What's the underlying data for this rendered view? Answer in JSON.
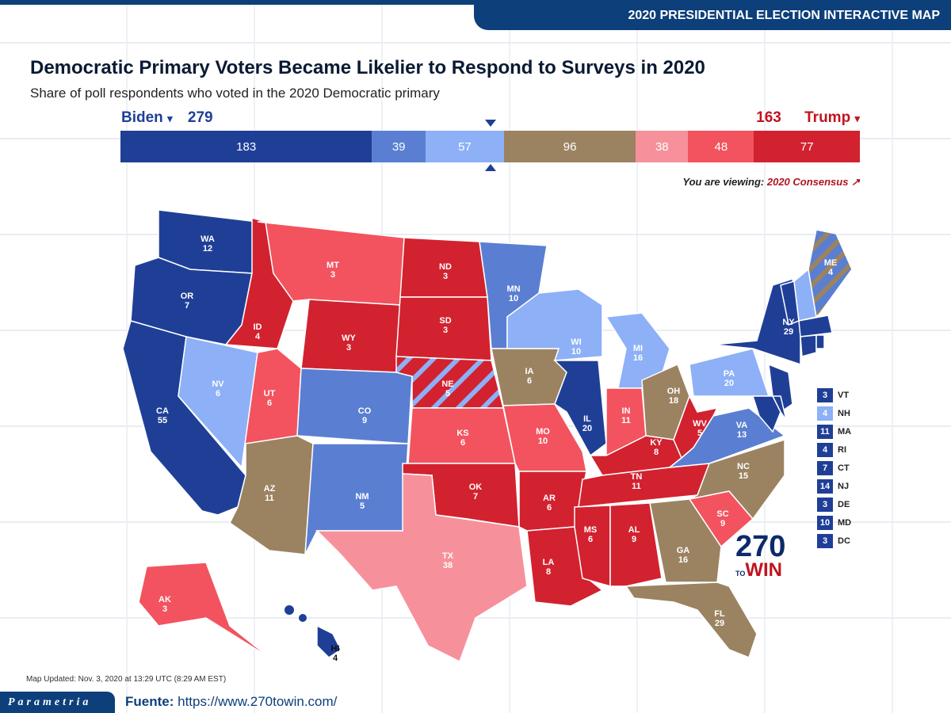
{
  "header": {
    "banner": "2020 PRESIDENTIAL ELECTION INTERACTIVE MAP",
    "title": "Democratic Primary Voters Became Likelier to Respond to Surveys in 2020",
    "subtitle": "Share of poll respondents who voted in the 2020 Democratic primary"
  },
  "candidates": {
    "dem_name": "Biden",
    "dem_total": "279",
    "rep_name": "Trump",
    "rep_total": "163",
    "caret": "▾"
  },
  "colors": {
    "safe_d": "#1f3f97",
    "likely_d": "#5a7fd2",
    "lean_d": "#8db0f7",
    "tossup": "#9b8361",
    "lean_r": "#f6919b",
    "likely_r": "#f2535f",
    "safe_r": "#d2222f"
  },
  "bar": [
    {
      "cat": "safe_d",
      "value": "183"
    },
    {
      "cat": "likely_d",
      "value": "39"
    },
    {
      "cat": "lean_d",
      "value": "57"
    },
    {
      "cat": "tossup",
      "value": "96"
    },
    {
      "cat": "lean_r",
      "value": "38"
    },
    {
      "cat": "likely_r",
      "value": "48"
    },
    {
      "cat": "safe_r",
      "value": "77"
    }
  ],
  "viewing": {
    "label": "You are viewing:",
    "value": "2020 Consensus",
    "icon": "external-link-icon"
  },
  "states": [
    {
      "abbr": "WA",
      "ev": "12",
      "cat": "safe_d"
    },
    {
      "abbr": "OR",
      "ev": "7",
      "cat": "safe_d"
    },
    {
      "abbr": "CA",
      "ev": "55",
      "cat": "safe_d"
    },
    {
      "abbr": "NV",
      "ev": "6",
      "cat": "lean_d"
    },
    {
      "abbr": "ID",
      "ev": "4",
      "cat": "safe_r"
    },
    {
      "abbr": "MT",
      "ev": "3",
      "cat": "likely_r"
    },
    {
      "abbr": "WY",
      "ev": "3",
      "cat": "safe_r"
    },
    {
      "abbr": "UT",
      "ev": "6",
      "cat": "likely_r"
    },
    {
      "abbr": "AZ",
      "ev": "11",
      "cat": "tossup"
    },
    {
      "abbr": "CO",
      "ev": "9",
      "cat": "likely_d"
    },
    {
      "abbr": "NM",
      "ev": "5",
      "cat": "likely_d"
    },
    {
      "abbr": "ND",
      "ev": "3",
      "cat": "safe_r"
    },
    {
      "abbr": "SD",
      "ev": "3",
      "cat": "safe_r"
    },
    {
      "abbr": "NE",
      "ev": "5",
      "cat": "safe_r"
    },
    {
      "abbr": "KS",
      "ev": "6",
      "cat": "likely_r"
    },
    {
      "abbr": "OK",
      "ev": "7",
      "cat": "safe_r"
    },
    {
      "abbr": "TX",
      "ev": "38",
      "cat": "lean_r"
    },
    {
      "abbr": "MN",
      "ev": "10",
      "cat": "likely_d"
    },
    {
      "abbr": "IA",
      "ev": "6",
      "cat": "tossup"
    },
    {
      "abbr": "MO",
      "ev": "10",
      "cat": "likely_r"
    },
    {
      "abbr": "AR",
      "ev": "6",
      "cat": "safe_r"
    },
    {
      "abbr": "LA",
      "ev": "8",
      "cat": "safe_r"
    },
    {
      "abbr": "WI",
      "ev": "10",
      "cat": "lean_d"
    },
    {
      "abbr": "IL",
      "ev": "20",
      "cat": "safe_d"
    },
    {
      "abbr": "MI",
      "ev": "16",
      "cat": "lean_d"
    },
    {
      "abbr": "IN",
      "ev": "11",
      "cat": "likely_r"
    },
    {
      "abbr": "OH",
      "ev": "18",
      "cat": "tossup"
    },
    {
      "abbr": "KY",
      "ev": "8",
      "cat": "safe_r"
    },
    {
      "abbr": "TN",
      "ev": "11",
      "cat": "safe_r"
    },
    {
      "abbr": "MS",
      "ev": "6",
      "cat": "safe_r"
    },
    {
      "abbr": "AL",
      "ev": "9",
      "cat": "safe_r"
    },
    {
      "abbr": "GA",
      "ev": "16",
      "cat": "tossup"
    },
    {
      "abbr": "FL",
      "ev": "29",
      "cat": "tossup"
    },
    {
      "abbr": "SC",
      "ev": "9",
      "cat": "likely_r"
    },
    {
      "abbr": "NC",
      "ev": "15",
      "cat": "tossup"
    },
    {
      "abbr": "VA",
      "ev": "13",
      "cat": "likely_d"
    },
    {
      "abbr": "WV",
      "ev": "5",
      "cat": "safe_r"
    },
    {
      "abbr": "PA",
      "ev": "20",
      "cat": "lean_d"
    },
    {
      "abbr": "NY",
      "ev": "29",
      "cat": "safe_d"
    },
    {
      "abbr": "VT",
      "ev": "3",
      "cat": "safe_d"
    },
    {
      "abbr": "NH",
      "ev": "4",
      "cat": "lean_d"
    },
    {
      "abbr": "ME",
      "ev": "4",
      "cat": "likely_d"
    },
    {
      "abbr": "MA",
      "ev": "11",
      "cat": "safe_d"
    },
    {
      "abbr": "CT",
      "ev": "7",
      "cat": "safe_d"
    },
    {
      "abbr": "RI",
      "ev": "4",
      "cat": "safe_d"
    },
    {
      "abbr": "NJ",
      "ev": "14",
      "cat": "safe_d"
    },
    {
      "abbr": "MD",
      "ev": "10",
      "cat": "safe_d"
    },
    {
      "abbr": "DE",
      "ev": "3",
      "cat": "safe_d"
    },
    {
      "abbr": "AK",
      "ev": "3",
      "cat": "likely_r"
    },
    {
      "abbr": "HI",
      "ev": "4",
      "cat": "safe_d"
    }
  ],
  "legend": [
    {
      "abbr": "VT",
      "ev": "3",
      "cat": "safe_d"
    },
    {
      "abbr": "NH",
      "ev": "4",
      "cat": "lean_d"
    },
    {
      "abbr": "MA",
      "ev": "11",
      "cat": "safe_d"
    },
    {
      "abbr": "RI",
      "ev": "4",
      "cat": "safe_d"
    },
    {
      "abbr": "CT",
      "ev": "7",
      "cat": "safe_d"
    },
    {
      "abbr": "NJ",
      "ev": "14",
      "cat": "safe_d"
    },
    {
      "abbr": "DE",
      "ev": "3",
      "cat": "safe_d"
    },
    {
      "abbr": "MD",
      "ev": "10",
      "cat": "safe_d"
    },
    {
      "abbr": "DC",
      "ev": "3",
      "cat": "safe_d"
    }
  ],
  "logo": {
    "top": "270",
    "bottom_small": "TO",
    "bottom": "WIN"
  },
  "footer": {
    "updated": "Map Updated: Nov. 3, 2020 at 13:29 UTC (8:29 AM EST)",
    "brand": "Parametria",
    "source_label": "Fuente:",
    "source_url": "https://www.270towin.com/"
  }
}
